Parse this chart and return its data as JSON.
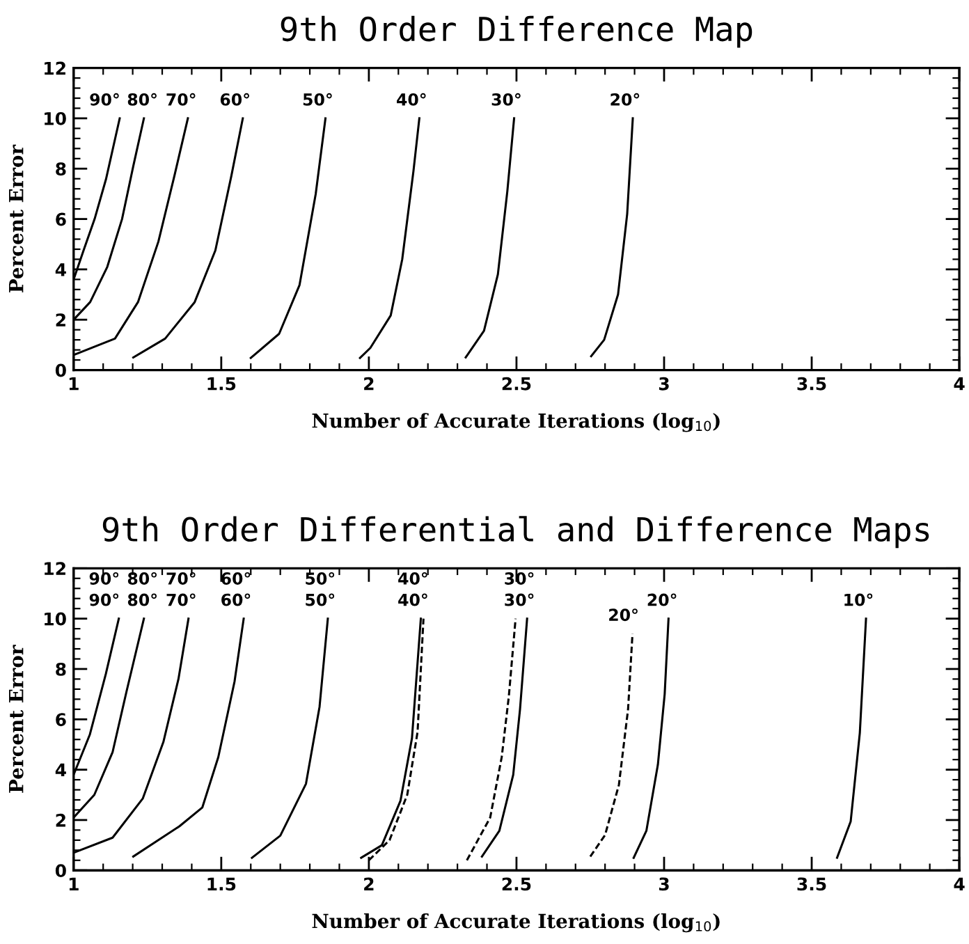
{
  "chart_data": [
    {
      "type": "line",
      "title": "9th Order Difference Map",
      "xlabel": "Number of Accurate Iterations (log$_{10}$)",
      "ylabel": "Percent Error",
      "xlim": [
        1,
        4
      ],
      "ylim": [
        0,
        12
      ],
      "xticks": [
        1,
        1.5,
        2,
        2.5,
        3,
        3.5,
        4
      ],
      "yticks": [
        0,
        2,
        4,
        6,
        8,
        10,
        12
      ],
      "series": [
        {
          "color": "#000000",
          "line_style": "solid",
          "x": [
            1,
            1.035,
            1.071,
            1.11,
            1.156
          ],
          "values": [
            3.6,
            4.8,
            6.0,
            7.6,
            10
          ]
        },
        {
          "color": "#000000",
          "line_style": "solid",
          "x": [
            1,
            1.056,
            1.114,
            1.164,
            1.202,
            1.238
          ],
          "values": [
            2.0,
            2.7,
            4.1,
            6.0,
            8.1,
            10
          ]
        },
        {
          "color": "#000000",
          "line_style": "solid",
          "x": [
            1,
            1.14,
            1.218,
            1.287,
            1.341,
            1.387
          ],
          "values": [
            0.6,
            1.25,
            2.7,
            5.1,
            7.7,
            10
          ]
        },
        {
          "color": "#000000",
          "line_style": "solid",
          "x": [
            1.202,
            1.31,
            1.41,
            1.48,
            1.534,
            1.573
          ],
          "values": [
            0.5,
            1.25,
            2.7,
            4.75,
            7.7,
            10
          ]
        },
        {
          "color": "#000000",
          "line_style": "solid",
          "x": [
            1.6,
            1.696,
            1.765,
            1.82,
            1.853
          ],
          "values": [
            0.48,
            1.44,
            3.37,
            7.0,
            10
          ]
        },
        {
          "color": "#000000",
          "line_style": "solid",
          "x": [
            1.97,
            2.005,
            2.074,
            2.113,
            2.151,
            2.171
          ],
          "values": [
            0.48,
            0.88,
            2.17,
            4.4,
            7.9,
            10
          ]
        },
        {
          "color": "#000000",
          "line_style": "solid",
          "x": [
            2.328,
            2.39,
            2.437,
            2.469,
            2.492
          ],
          "values": [
            0.5,
            1.56,
            3.8,
            7.1,
            10
          ]
        },
        {
          "color": "#000000",
          "line_style": "solid",
          "x": [
            2.753,
            2.797,
            2.844,
            2.875,
            2.894
          ],
          "values": [
            0.55,
            1.2,
            3.0,
            6.2,
            10
          ]
        }
      ],
      "annotations": [
        {
          "text": "90°",
          "x": 1.156,
          "y": 10
        },
        {
          "text": "80°",
          "x": 1.238,
          "y": 10
        },
        {
          "text": "70°",
          "x": 1.387,
          "y": 10
        },
        {
          "text": "60°",
          "x": 1.573,
          "y": 10
        },
        {
          "text": "50°",
          "x": 1.853,
          "y": 10
        },
        {
          "text": "40°",
          "x": 2.171,
          "y": 10
        },
        {
          "text": "30°",
          "x": 2.492,
          "y": 10
        },
        {
          "text": "20°",
          "x": 2.894,
          "y": 10
        }
      ]
    },
    {
      "type": "line",
      "title": "9th Order Differential and Difference Maps",
      "xlabel": "Number of Accurate Iterations (log$_{10}$)",
      "ylabel": "Percent Error",
      "xlim": [
        1,
        4
      ],
      "ylim": [
        0,
        12
      ],
      "xticks": [
        1,
        1.5,
        2,
        2.5,
        3,
        3.5,
        4
      ],
      "yticks": [
        0,
        2,
        4,
        6,
        8,
        10,
        12
      ],
      "series": [
        {
          "color": "#000000",
          "line_style": "solid",
          "x": [
            1,
            1.055,
            1.109,
            1.153
          ],
          "values": [
            3.8,
            5.4,
            7.8,
            10
          ]
        },
        {
          "color": "#000000",
          "line_style": "solid",
          "x": [
            1,
            1.07,
            1.132,
            1.179,
            1.238
          ],
          "values": [
            2.1,
            3.0,
            4.7,
            7.1,
            10
          ]
        },
        {
          "color": "#000000",
          "line_style": "solid",
          "x": [
            1,
            1.132,
            1.234,
            1.304,
            1.355,
            1.389
          ],
          "values": [
            0.7,
            1.3,
            2.85,
            5.1,
            7.6,
            10
          ]
        },
        {
          "color": "#000000",
          "line_style": "solid",
          "x": [
            1.202,
            1.358,
            1.436,
            1.49,
            1.545,
            1.576
          ],
          "values": [
            0.55,
            1.75,
            2.5,
            4.5,
            7.5,
            10
          ]
        },
        {
          "color": "#000000",
          "line_style": "solid",
          "x": [
            1.604,
            1.7,
            1.787,
            1.833,
            1.861
          ],
          "values": [
            0.5,
            1.38,
            3.44,
            6.5,
            10
          ]
        },
        {
          "color": "#000000",
          "line_style": "solid",
          "x": [
            1.974,
            2.044,
            2.107,
            2.146,
            2.176
          ],
          "values": [
            0.5,
            1.0,
            2.76,
            5.25,
            10
          ]
        },
        {
          "color": "#000000",
          "line_style": "dashed",
          "x": [
            2.0,
            2.07,
            2.13,
            2.165,
            2.185
          ],
          "values": [
            0.4,
            1.2,
            3.0,
            5.5,
            10
          ]
        },
        {
          "color": "#000000",
          "line_style": "dashed",
          "x": [
            2.332,
            2.411,
            2.45,
            2.474,
            2.497
          ],
          "values": [
            0.4,
            2.1,
            4.5,
            6.9,
            10
          ]
        },
        {
          "color": "#000000",
          "line_style": "solid",
          "x": [
            2.383,
            2.442,
            2.489,
            2.512,
            2.536
          ],
          "values": [
            0.55,
            1.57,
            3.8,
            6.4,
            10
          ]
        },
        {
          "color": "#000000",
          "line_style": "dashed",
          "x": [
            2.75,
            2.8,
            2.847,
            2.878,
            2.893
          ],
          "values": [
            0.55,
            1.4,
            3.4,
            6.4,
            9.4
          ]
        },
        {
          "color": "#000000",
          "line_style": "solid",
          "x": [
            2.897,
            2.94,
            2.979,
            3.002,
            3.015
          ],
          "values": [
            0.5,
            1.57,
            4.2,
            7.0,
            10
          ]
        },
        {
          "color": "#000000",
          "line_style": "solid",
          "x": [
            3.586,
            3.632,
            3.663,
            3.684
          ],
          "values": [
            0.5,
            1.94,
            5.46,
            10
          ]
        }
      ],
      "annotations": [
        {
          "text": "90°",
          "x": 1.153,
          "y": 10
        },
        {
          "text": "90°",
          "x": 1.153,
          "y": 10
        },
        {
          "text": "80°",
          "x": 1.238,
          "y": 10
        },
        {
          "text": "80°",
          "x": 1.238,
          "y": 10
        },
        {
          "text": "70°",
          "x": 1.389,
          "y": 10
        },
        {
          "text": "70°",
          "x": 1.389,
          "y": 10
        },
        {
          "text": "60°",
          "x": 1.576,
          "y": 10
        },
        {
          "text": "60°",
          "x": 1.576,
          "y": 10
        },
        {
          "text": "50°",
          "x": 1.861,
          "y": 10
        },
        {
          "text": "50°",
          "x": 1.861,
          "y": 10
        },
        {
          "text": "40°",
          "x": 2.176,
          "y": 10
        },
        {
          "text": "40°",
          "x": 2.176,
          "y": 10
        },
        {
          "text": "30°",
          "x": 2.536,
          "y": 10
        },
        {
          "text": "30°",
          "x": 2.536,
          "y": 10
        },
        {
          "text": "20°",
          "x": 2.893,
          "y": 9.4
        },
        {
          "text": "20°",
          "x": 3.015,
          "y": 10
        },
        {
          "text": "10°",
          "x": 3.684,
          "y": 10
        }
      ]
    }
  ]
}
